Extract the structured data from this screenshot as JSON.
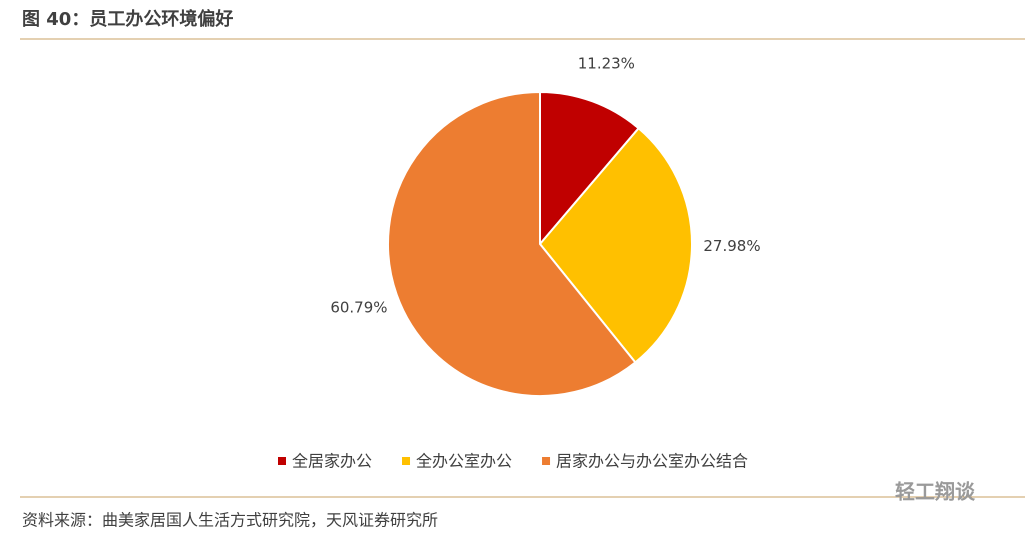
{
  "title": "图 40：员工办公环境偏好",
  "chart_data": {
    "type": "pie",
    "categories": [
      "全居家办公",
      "全办公室办公",
      "居家办公与办公室办公结合"
    ],
    "values": [
      11.23,
      27.98,
      60.79
    ],
    "value_labels": [
      "11.23%",
      "27.98%",
      "60.79%"
    ],
    "colors": [
      "#c00000",
      "#ffc000",
      "#ed7d31"
    ],
    "legend": "bottom"
  },
  "source": "资料来源：曲美家居国人生活方式研究院，天风证券研究所",
  "watermark": "轻工翔谈"
}
